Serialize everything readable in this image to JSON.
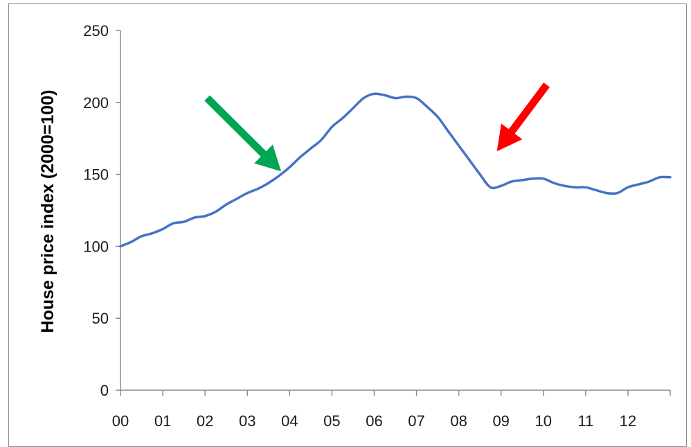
{
  "chart_data": {
    "type": "line",
    "title": "",
    "xlabel": "",
    "ylabel": "House price index (2000=100)",
    "ylim": [
      0,
      250
    ],
    "yticks": [
      0,
      50,
      100,
      150,
      200,
      250
    ],
    "xlim": [
      0,
      13
    ],
    "xticks": [
      "00",
      "01",
      "02",
      "03",
      "04",
      "05",
      "06",
      "07",
      "08",
      "09",
      "10",
      "11",
      "12"
    ],
    "grid": false,
    "legend": "none",
    "series": [
      {
        "color": "#4472c4",
        "x": [
          0,
          0.25,
          0.5,
          0.75,
          1,
          1.25,
          1.5,
          1.75,
          2,
          2.25,
          2.5,
          2.75,
          3,
          3.25,
          3.5,
          3.75,
          4,
          4.25,
          4.5,
          4.75,
          5,
          5.25,
          5.5,
          5.75,
          6,
          6.25,
          6.5,
          6.75,
          7,
          7.25,
          7.5,
          7.75,
          8,
          8.25,
          8.5,
          8.75,
          9,
          9.25,
          9.5,
          9.75,
          10,
          10.25,
          10.5,
          10.75,
          11,
          11.25,
          11.5,
          11.75,
          12,
          12.25,
          12.5,
          12.75,
          13
        ],
        "y": [
          100,
          103,
          107,
          109,
          112,
          116,
          117,
          120,
          121,
          124,
          129,
          133,
          137,
          140,
          144,
          149,
          155,
          162,
          168,
          174,
          183,
          189,
          196,
          203,
          206,
          205,
          203,
          204,
          203,
          197,
          190,
          180,
          170,
          160,
          150,
          141,
          142,
          145,
          146,
          147,
          147,
          144,
          142,
          141,
          141,
          139,
          137,
          137,
          141,
          143,
          145,
          148,
          148
        ]
      }
    ],
    "annotations": [
      {
        "kind": "arrow",
        "color": "#00a651",
        "points_to": [
          3.8,
          152
        ]
      },
      {
        "kind": "arrow",
        "color": "#ff0000",
        "points_to": [
          8.9,
          166
        ]
      }
    ]
  }
}
